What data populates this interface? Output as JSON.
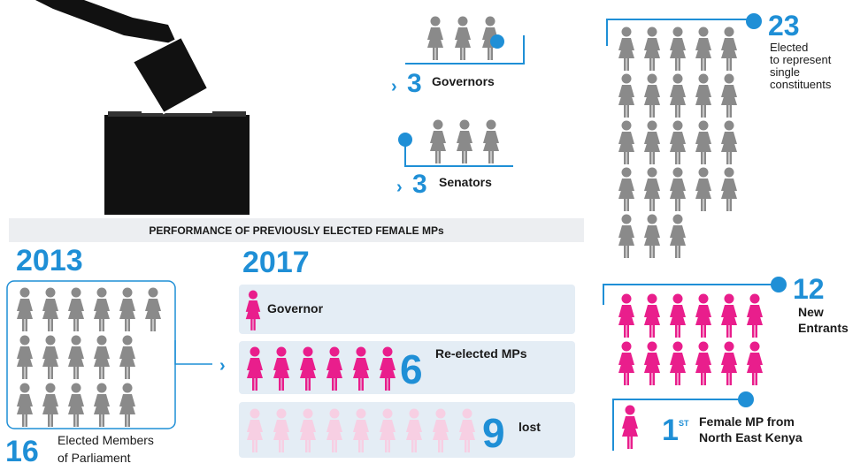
{
  "governors": {
    "number": 3,
    "label": "Governors"
  },
  "senators": {
    "number": 3,
    "label": "Senators"
  },
  "elected": {
    "number": 23,
    "label_lines": [
      "Elected",
      "to represent",
      "single",
      "constituents"
    ]
  },
  "performance_title": "PERFORMANCE OF PREVIOUSLY ELECTED FEMALE MPs",
  "year_2013": {
    "year": "2013",
    "number": 16,
    "label_lines": [
      "Elected Members",
      "of Parliament"
    ]
  },
  "year_2017": {
    "year": "2017",
    "governor": {
      "label": "Governor"
    },
    "reelected": {
      "number": 6,
      "label": "Re-elected MPs"
    },
    "lost": {
      "number": 9,
      "label": "lost"
    }
  },
  "new_entrants": {
    "number": 12,
    "label_lines": [
      "New",
      "Entrants"
    ]
  },
  "first": {
    "ordinal": "1",
    "suffix": "ST",
    "label_lines": [
      "Female MP from",
      "North East Kenya"
    ]
  }
}
